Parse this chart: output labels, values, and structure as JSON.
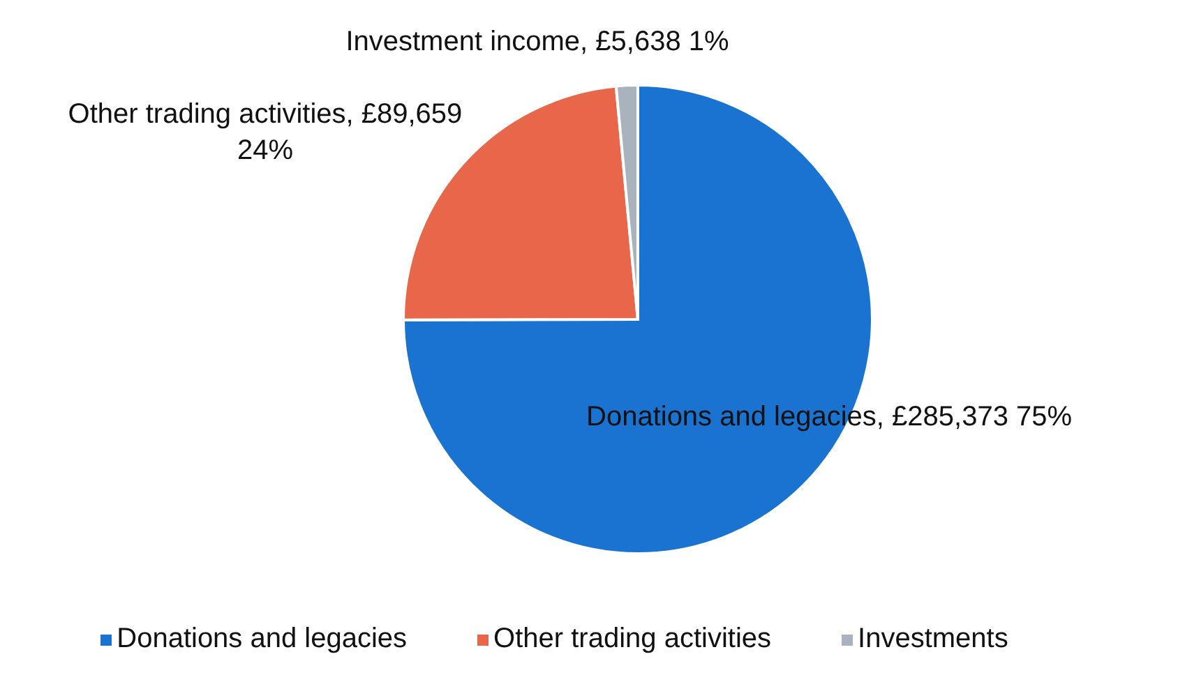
{
  "chart_data": {
    "type": "pie",
    "categories": [
      "Donations and legacies",
      "Other trading activities",
      "Investments"
    ],
    "values": [
      285373,
      89659,
      5638
    ],
    "colors": [
      "#1a73d0",
      "#e8674a",
      "#a9b3bd"
    ],
    "value_labels": [
      "Donations and legacies, £285,373 75%",
      "Other trading activities, £89,659 24%",
      "Investment income, £5,638 1%"
    ],
    "legend": "bottom"
  }
}
